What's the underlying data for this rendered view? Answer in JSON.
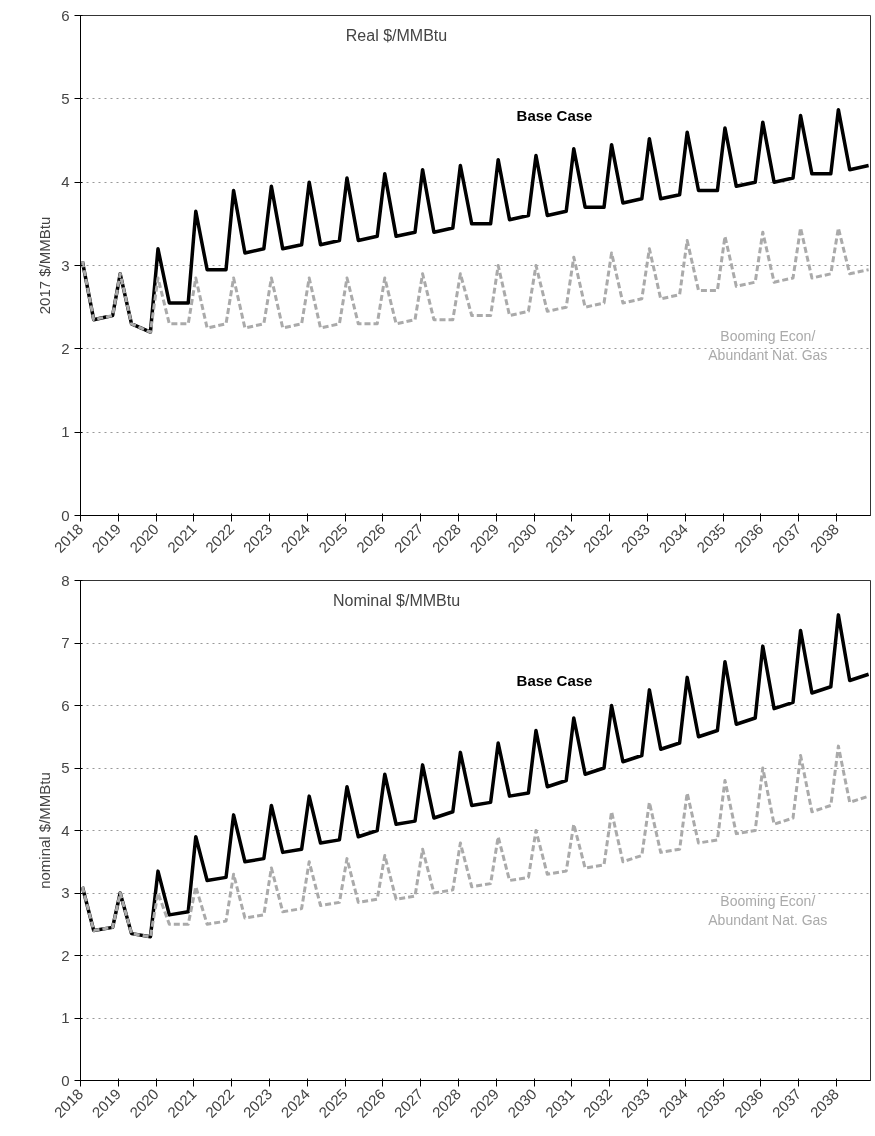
{
  "chart_data": [
    {
      "type": "line",
      "title": "Real $/MMBtu",
      "ylabel": "2017 $/MMBtu",
      "x": [
        2018.05,
        2018.35,
        2018.85,
        2019.05,
        2019.35,
        2019.85,
        2020.05,
        2020.35,
        2020.85,
        2021.05,
        2021.35,
        2021.85,
        2022.05,
        2022.35,
        2022.85,
        2023.05,
        2023.35,
        2023.85,
        2024.05,
        2024.35,
        2024.85,
        2025.05,
        2025.35,
        2025.85,
        2026.05,
        2026.35,
        2026.85,
        2027.05,
        2027.35,
        2027.85,
        2028.05,
        2028.35,
        2028.85,
        2029.05,
        2029.35,
        2029.85,
        2030.05,
        2030.35,
        2030.85,
        2031.05,
        2031.35,
        2031.85,
        2032.05,
        2032.35,
        2032.85,
        2033.05,
        2033.35,
        2033.85,
        2034.05,
        2034.35,
        2034.85,
        2035.05,
        2035.35,
        2035.85,
        2036.05,
        2036.35,
        2036.85,
        2037.05,
        2037.35,
        2037.85,
        2038.05,
        2038.35,
        2038.85
      ],
      "series": [
        {
          "name": "Base Case",
          "color": "#000000",
          "line_style": "solid",
          "values": [
            3.05,
            2.35,
            2.4,
            2.9,
            2.3,
            2.2,
            3.2,
            2.55,
            2.55,
            3.65,
            2.95,
            2.95,
            3.9,
            3.15,
            3.2,
            3.95,
            3.2,
            3.25,
            4.0,
            3.25,
            3.3,
            4.05,
            3.3,
            3.35,
            4.1,
            3.35,
            3.4,
            4.15,
            3.4,
            3.45,
            4.2,
            3.5,
            3.5,
            4.27,
            3.55,
            3.6,
            4.32,
            3.6,
            3.65,
            4.4,
            3.7,
            3.7,
            4.45,
            3.75,
            3.8,
            4.52,
            3.8,
            3.85,
            4.6,
            3.9,
            3.9,
            4.65,
            3.95,
            4.0,
            4.72,
            4.0,
            4.05,
            4.8,
            4.1,
            4.1,
            4.87,
            4.15,
            4.2
          ]
        },
        {
          "name": "Booming Econ/\nAbundant Nat. Gas",
          "color": "#aaaaaa",
          "line_style": "dashed",
          "values": [
            3.05,
            2.35,
            2.4,
            2.9,
            2.3,
            2.2,
            2.85,
            2.3,
            2.3,
            2.85,
            2.25,
            2.3,
            2.85,
            2.25,
            2.3,
            2.85,
            2.25,
            2.3,
            2.85,
            2.25,
            2.3,
            2.85,
            2.3,
            2.3,
            2.85,
            2.3,
            2.35,
            2.9,
            2.35,
            2.35,
            2.9,
            2.4,
            2.4,
            3.0,
            2.4,
            2.45,
            3.0,
            2.45,
            2.5,
            3.1,
            2.5,
            2.55,
            3.15,
            2.55,
            2.6,
            3.2,
            2.6,
            2.65,
            3.3,
            2.7,
            2.7,
            3.35,
            2.75,
            2.8,
            3.4,
            2.8,
            2.85,
            3.45,
            2.85,
            2.9,
            3.45,
            2.9,
            2.95
          ]
        }
      ],
      "xlim": [
        2018,
        2038.9
      ],
      "xticks": [
        2018,
        2019,
        2020,
        2021,
        2022,
        2023,
        2024,
        2025,
        2026,
        2027,
        2028,
        2029,
        2030,
        2031,
        2032,
        2033,
        2034,
        2035,
        2036,
        2037,
        2038
      ],
      "ylim": [
        0,
        6
      ],
      "yticks": [
        0,
        1,
        2,
        3,
        4,
        5,
        6
      ],
      "grid": "y"
    },
    {
      "type": "line",
      "title": "Nominal $/MMBtu",
      "ylabel": "nominal $/MMBtu",
      "x": [
        2018.05,
        2018.35,
        2018.85,
        2019.05,
        2019.35,
        2019.85,
        2020.05,
        2020.35,
        2020.85,
        2021.05,
        2021.35,
        2021.85,
        2022.05,
        2022.35,
        2022.85,
        2023.05,
        2023.35,
        2023.85,
        2024.05,
        2024.35,
        2024.85,
        2025.05,
        2025.35,
        2025.85,
        2026.05,
        2026.35,
        2026.85,
        2027.05,
        2027.35,
        2027.85,
        2028.05,
        2028.35,
        2028.85,
        2029.05,
        2029.35,
        2029.85,
        2030.05,
        2030.35,
        2030.85,
        2031.05,
        2031.35,
        2031.85,
        2032.05,
        2032.35,
        2032.85,
        2033.05,
        2033.35,
        2033.85,
        2034.05,
        2034.35,
        2034.85,
        2035.05,
        2035.35,
        2035.85,
        2036.05,
        2036.35,
        2036.85,
        2037.05,
        2037.35,
        2037.85,
        2038.05,
        2038.35,
        2038.85
      ],
      "series": [
        {
          "name": "Base Case",
          "color": "#000000",
          "line_style": "solid",
          "values": [
            3.1,
            2.4,
            2.45,
            3.0,
            2.35,
            2.3,
            3.35,
            2.65,
            2.7,
            3.9,
            3.2,
            3.25,
            4.25,
            3.5,
            3.55,
            4.4,
            3.65,
            3.7,
            4.55,
            3.8,
            3.85,
            4.7,
            3.9,
            4.0,
            4.9,
            4.1,
            4.15,
            5.05,
            4.2,
            4.3,
            5.25,
            4.4,
            4.45,
            5.4,
            4.55,
            4.6,
            5.6,
            4.7,
            4.8,
            5.8,
            4.9,
            5.0,
            6.0,
            5.1,
            5.2,
            6.25,
            5.3,
            5.4,
            6.45,
            5.5,
            5.6,
            6.7,
            5.7,
            5.8,
            6.95,
            5.95,
            6.05,
            7.2,
            6.2,
            6.3,
            7.45,
            6.4,
            6.5
          ]
        },
        {
          "name": "Booming Econ/\nAbundant Nat. Gas",
          "color": "#aaaaaa",
          "line_style": "dashed",
          "values": [
            3.1,
            2.4,
            2.45,
            3.0,
            2.35,
            2.3,
            3.0,
            2.5,
            2.5,
            3.1,
            2.5,
            2.55,
            3.3,
            2.6,
            2.65,
            3.4,
            2.7,
            2.75,
            3.5,
            2.8,
            2.85,
            3.55,
            2.85,
            2.9,
            3.6,
            2.9,
            2.95,
            3.7,
            3.0,
            3.05,
            3.8,
            3.1,
            3.15,
            3.9,
            3.2,
            3.25,
            4.0,
            3.3,
            3.35,
            4.1,
            3.4,
            3.45,
            4.3,
            3.5,
            3.6,
            4.45,
            3.65,
            3.7,
            4.6,
            3.8,
            3.85,
            4.8,
            3.95,
            4.0,
            5.0,
            4.1,
            4.2,
            5.2,
            4.3,
            4.4,
            5.35,
            4.45,
            4.55
          ]
        }
      ],
      "xlim": [
        2018,
        2038.9
      ],
      "xticks": [
        2018,
        2019,
        2020,
        2021,
        2022,
        2023,
        2024,
        2025,
        2026,
        2027,
        2028,
        2029,
        2030,
        2031,
        2032,
        2033,
        2034,
        2035,
        2036,
        2037,
        2038
      ],
      "ylim": [
        0,
        8
      ],
      "yticks": [
        0,
        1,
        2,
        3,
        4,
        5,
        6,
        7,
        8
      ],
      "grid": "y"
    }
  ]
}
